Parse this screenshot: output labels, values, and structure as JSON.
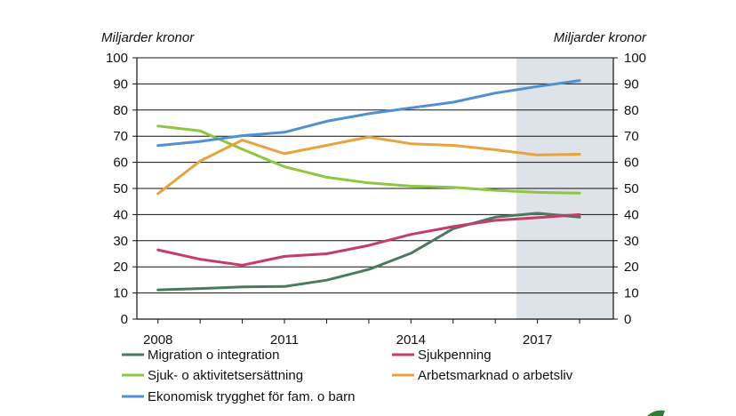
{
  "header": {
    "title_fragment": ""
  },
  "chart_data": {
    "type": "line",
    "title": "",
    "ylabel_left": "Miljarder kronor",
    "ylabel_right": "Miljarder kronor",
    "x": [
      2008,
      2009,
      2010,
      2011,
      2012,
      2013,
      2014,
      2015,
      2016,
      2017,
      2018
    ],
    "xticks": [
      "2008",
      "2011",
      "2014",
      "2017"
    ],
    "xlim": [
      2007.5,
      2018.8
    ],
    "ylim": [
      0,
      100
    ],
    "yticks": [
      "0",
      "10",
      "20",
      "30",
      "40",
      "50",
      "60",
      "70",
      "80",
      "90",
      "100"
    ],
    "forecast_shade": {
      "from": 2016.5,
      "to": 2018.8,
      "color": "#dde3e8"
    },
    "grid": true,
    "legend_position": "bottom",
    "series": [
      {
        "name": "Migration o integration",
        "color": "#4a7a5e",
        "values": [
          11.2,
          11.7,
          12.3,
          12.5,
          14.9,
          19.0,
          25.2,
          34.6,
          39.0,
          40.5,
          39.0
        ]
      },
      {
        "name": "Sjukpenning",
        "color": "#c43d6a",
        "values": [
          26.5,
          22.9,
          20.6,
          24.0,
          25.0,
          28.2,
          32.4,
          35.4,
          37.8,
          38.8,
          40.0
        ]
      },
      {
        "name": "Sjuk- o aktivitetsersättning",
        "color": "#8dc63f",
        "values": [
          73.9,
          72.0,
          65.0,
          58.3,
          54.3,
          52.1,
          50.9,
          50.4,
          49.3,
          48.5,
          48.2
        ]
      },
      {
        "name": "Arbetsmarknad o arbetsliv",
        "color": "#e8a33c",
        "values": [
          48.0,
          60.5,
          68.5,
          63.3,
          66.5,
          69.7,
          67.1,
          66.5,
          64.8,
          62.8,
          63.1
        ]
      },
      {
        "name": "Ekonomisk trygghet för fam. o barn",
        "color": "#4f90d0",
        "values": [
          66.4,
          68.0,
          70.2,
          71.5,
          75.7,
          78.6,
          80.8,
          83.0,
          86.5,
          89.0,
          91.3
        ]
      }
    ]
  }
}
